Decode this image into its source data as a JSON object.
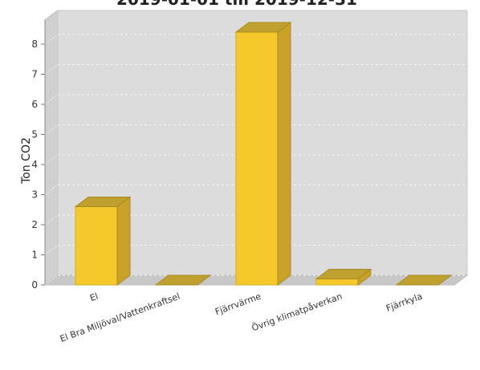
{
  "chart_data": {
    "type": "bar",
    "title": "2019-01-01 till 2019-12-31",
    "xlabel": "",
    "ylabel": "Ton CO2",
    "categories": [
      "El",
      "El Bra Miljöval/Vattenkraftsel",
      "Fjärrvärme",
      "Övrig klimatpåverkan",
      "Fjärrkyla"
    ],
    "values": [
      2.6,
      0,
      8.4,
      0.2,
      0
    ],
    "ylim": [
      0,
      8.8
    ],
    "yticks": [
      0,
      1,
      2,
      3,
      4,
      5,
      6,
      7,
      8
    ],
    "grid": true,
    "bar_color": "#f5c92b",
    "bar_side_color": "#c9a22a",
    "bar_top_color": "#c0a130",
    "background_color": "#dcdcdc",
    "legend": "none"
  }
}
